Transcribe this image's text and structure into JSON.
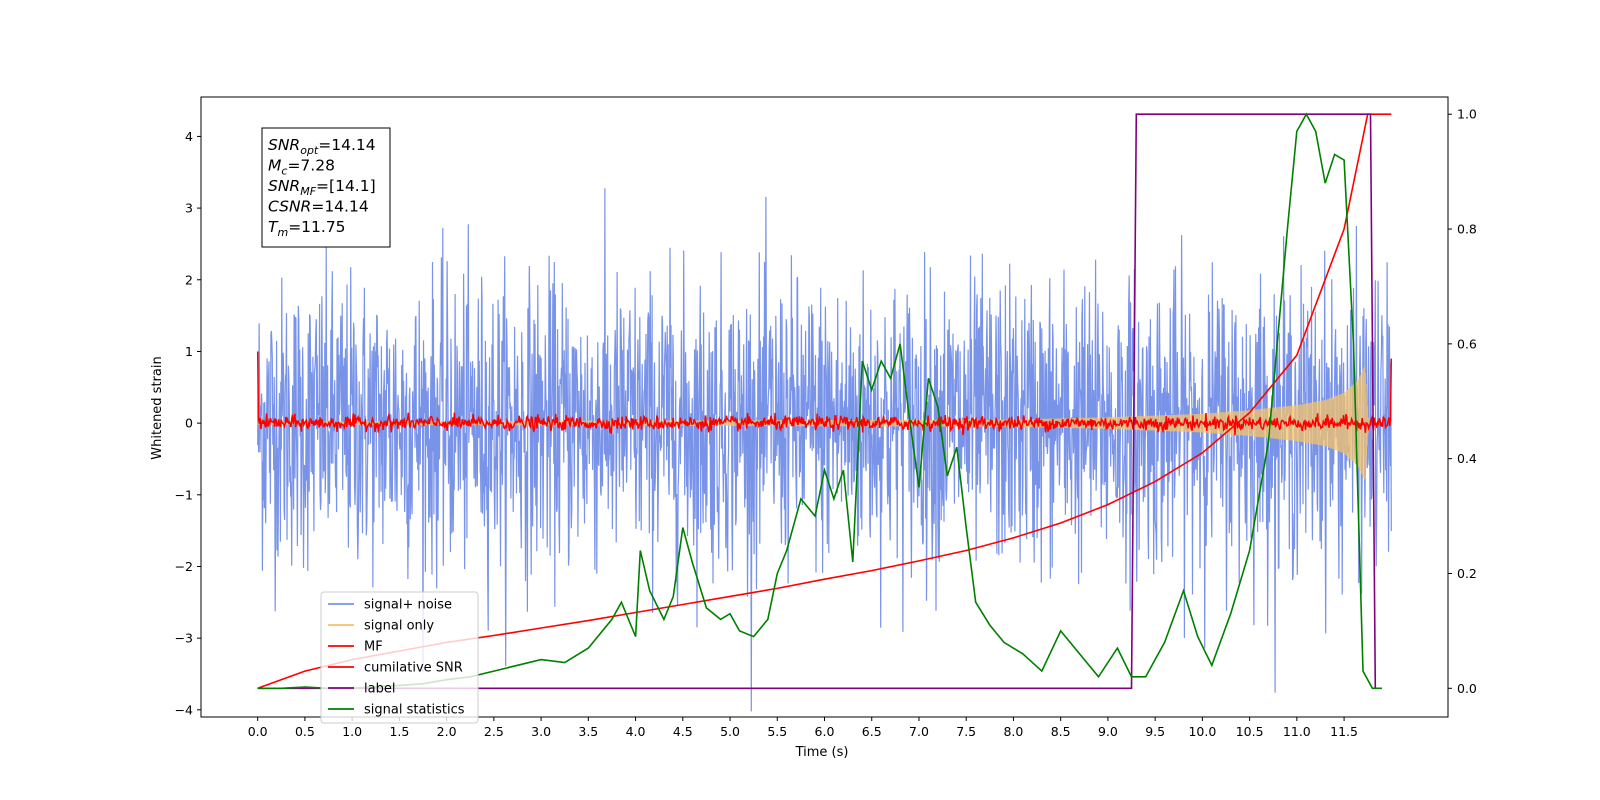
{
  "chart_data": {
    "type": "line",
    "title": "",
    "xlabel": "Time (s)",
    "ylabel": "Whitened strain",
    "xlim": [
      -0.6,
      12.6
    ],
    "ylim": [
      -4.1,
      4.55
    ],
    "y2lim": [
      -0.05,
      1.03
    ],
    "x_ticks": [
      "0.0",
      "0.5",
      "1.0",
      "1.5",
      "2.0",
      "2.5",
      "3.0",
      "3.5",
      "4.0",
      "4.5",
      "5.0",
      "5.5",
      "6.0",
      "6.5",
      "7.0",
      "7.5",
      "8.0",
      "8.5",
      "9.0",
      "9.5",
      "10.0",
      "10.5",
      "11.0",
      "11.5"
    ],
    "y_ticks": [
      "4",
      "3",
      "2",
      "1",
      "0",
      "−1",
      "−2",
      "−3",
      "−4"
    ],
    "y2_ticks": [
      "1.0",
      "0.8",
      "0.6",
      "0.4",
      "0.2",
      "0.0"
    ],
    "grid": false,
    "legend_position": "lower-left",
    "annotation": {
      "lines": [
        {
          "main": "SNR",
          "sub": "opt",
          "rest": "=14.14"
        },
        {
          "main": "M",
          "sub": "c",
          "rest": "=7.28"
        },
        {
          "main": "SNR",
          "sub": "MF",
          "rest": "=[14.1]"
        },
        {
          "main": "CSNR",
          "sub": "",
          "rest": "=14.14"
        },
        {
          "main": "T",
          "sub": "m",
          "rest": "=11.75"
        }
      ]
    },
    "legend": [
      {
        "label": "signal+ noise",
        "color": "#7893e8"
      },
      {
        "label": "signal only",
        "color": "#f5c36b"
      },
      {
        "label": "MF",
        "color": "#ff0000"
      },
      {
        "label": "cumilative SNR",
        "color": "#ff0000"
      },
      {
        "label": "label",
        "color": "#800080"
      },
      {
        "label": "signal statistics",
        "color": "#008000"
      }
    ],
    "series": [
      {
        "name": "signal+ noise",
        "axis": "left",
        "color": "#7893e8",
        "description": "white noise, std ~1, x range 0 to 12",
        "x_range": [
          0,
          12
        ],
        "noise_std": 1.0
      },
      {
        "name": "signal only",
        "axis": "left",
        "color": "#f5c36b",
        "envelope": {
          "x": [
            0,
            8,
            9,
            10,
            10.5,
            11,
            11.3,
            11.5,
            11.65,
            11.72,
            11.76
          ],
          "amplitude": [
            0.02,
            0.05,
            0.08,
            0.13,
            0.18,
            0.25,
            0.32,
            0.42,
            0.6,
            0.8,
            0.0
          ]
        }
      },
      {
        "name": "MF",
        "axis": "left",
        "color": "#ff0000",
        "description": "near-zero jitter, spikes at edges",
        "start_value": 1.0,
        "end_value": 0.9,
        "jitter": 0.05
      },
      {
        "name": "cumilative SNR",
        "axis": "right",
        "color": "#ff0000",
        "x": [
          0,
          0.5,
          1,
          1.5,
          2,
          2.5,
          3,
          3.5,
          4,
          4.5,
          5,
          5.5,
          6,
          6.5,
          7,
          7.5,
          8,
          8.5,
          9,
          9.5,
          10,
          10.5,
          11,
          11.5,
          11.75,
          12
        ],
        "y": [
          0.0,
          0.03,
          0.05,
          0.065,
          0.08,
          0.092,
          0.105,
          0.118,
          0.132,
          0.146,
          0.16,
          0.174,
          0.19,
          0.205,
          0.222,
          0.24,
          0.262,
          0.288,
          0.32,
          0.36,
          0.41,
          0.48,
          0.58,
          0.8,
          1.0,
          1.0
        ]
      },
      {
        "name": "label",
        "axis": "right",
        "color": "#800080",
        "x": [
          0,
          9.25,
          9.3,
          11.78,
          11.83
        ],
        "y": [
          0,
          0,
          1,
          1,
          0
        ]
      },
      {
        "name": "signal statistics",
        "axis": "right",
        "color": "#008000",
        "x": [
          0,
          0.25,
          0.5,
          0.75,
          1.0,
          1.25,
          1.5,
          1.75,
          2.0,
          2.25,
          2.5,
          2.75,
          3.0,
          3.25,
          3.5,
          3.75,
          3.85,
          4.0,
          4.05,
          4.15,
          4.3,
          4.4,
          4.5,
          4.6,
          4.75,
          4.9,
          5.0,
          5.1,
          5.25,
          5.4,
          5.5,
          5.6,
          5.75,
          5.9,
          6.0,
          6.1,
          6.2,
          6.3,
          6.4,
          6.5,
          6.6,
          6.7,
          6.8,
          6.9,
          7.0,
          7.1,
          7.2,
          7.3,
          7.4,
          7.5,
          7.6,
          7.75,
          7.9,
          8.1,
          8.3,
          8.5,
          8.7,
          8.9,
          9.1,
          9.25,
          9.4,
          9.5,
          9.6,
          9.8,
          9.95,
          10.1,
          10.3,
          10.5,
          10.7,
          10.9,
          11.0,
          11.1,
          11.2,
          11.3,
          11.4,
          11.5,
          11.6,
          11.7,
          11.8,
          11.9
        ],
        "y": [
          0.0,
          0.0,
          0.002,
          0.0,
          0.0,
          0.003,
          0.005,
          0.008,
          0.015,
          0.02,
          0.03,
          0.04,
          0.05,
          0.045,
          0.07,
          0.12,
          0.15,
          0.09,
          0.24,
          0.17,
          0.12,
          0.16,
          0.28,
          0.22,
          0.14,
          0.12,
          0.13,
          0.1,
          0.09,
          0.12,
          0.2,
          0.24,
          0.33,
          0.3,
          0.38,
          0.33,
          0.38,
          0.22,
          0.57,
          0.52,
          0.57,
          0.54,
          0.6,
          0.47,
          0.35,
          0.54,
          0.49,
          0.37,
          0.42,
          0.28,
          0.15,
          0.11,
          0.08,
          0.06,
          0.03,
          0.1,
          0.06,
          0.02,
          0.07,
          0.02,
          0.02,
          0.05,
          0.08,
          0.17,
          0.09,
          0.04,
          0.13,
          0.24,
          0.43,
          0.8,
          0.97,
          1.0,
          0.97,
          0.88,
          0.93,
          0.92,
          0.6,
          0.03,
          0.0,
          0.0
        ]
      }
    ]
  }
}
